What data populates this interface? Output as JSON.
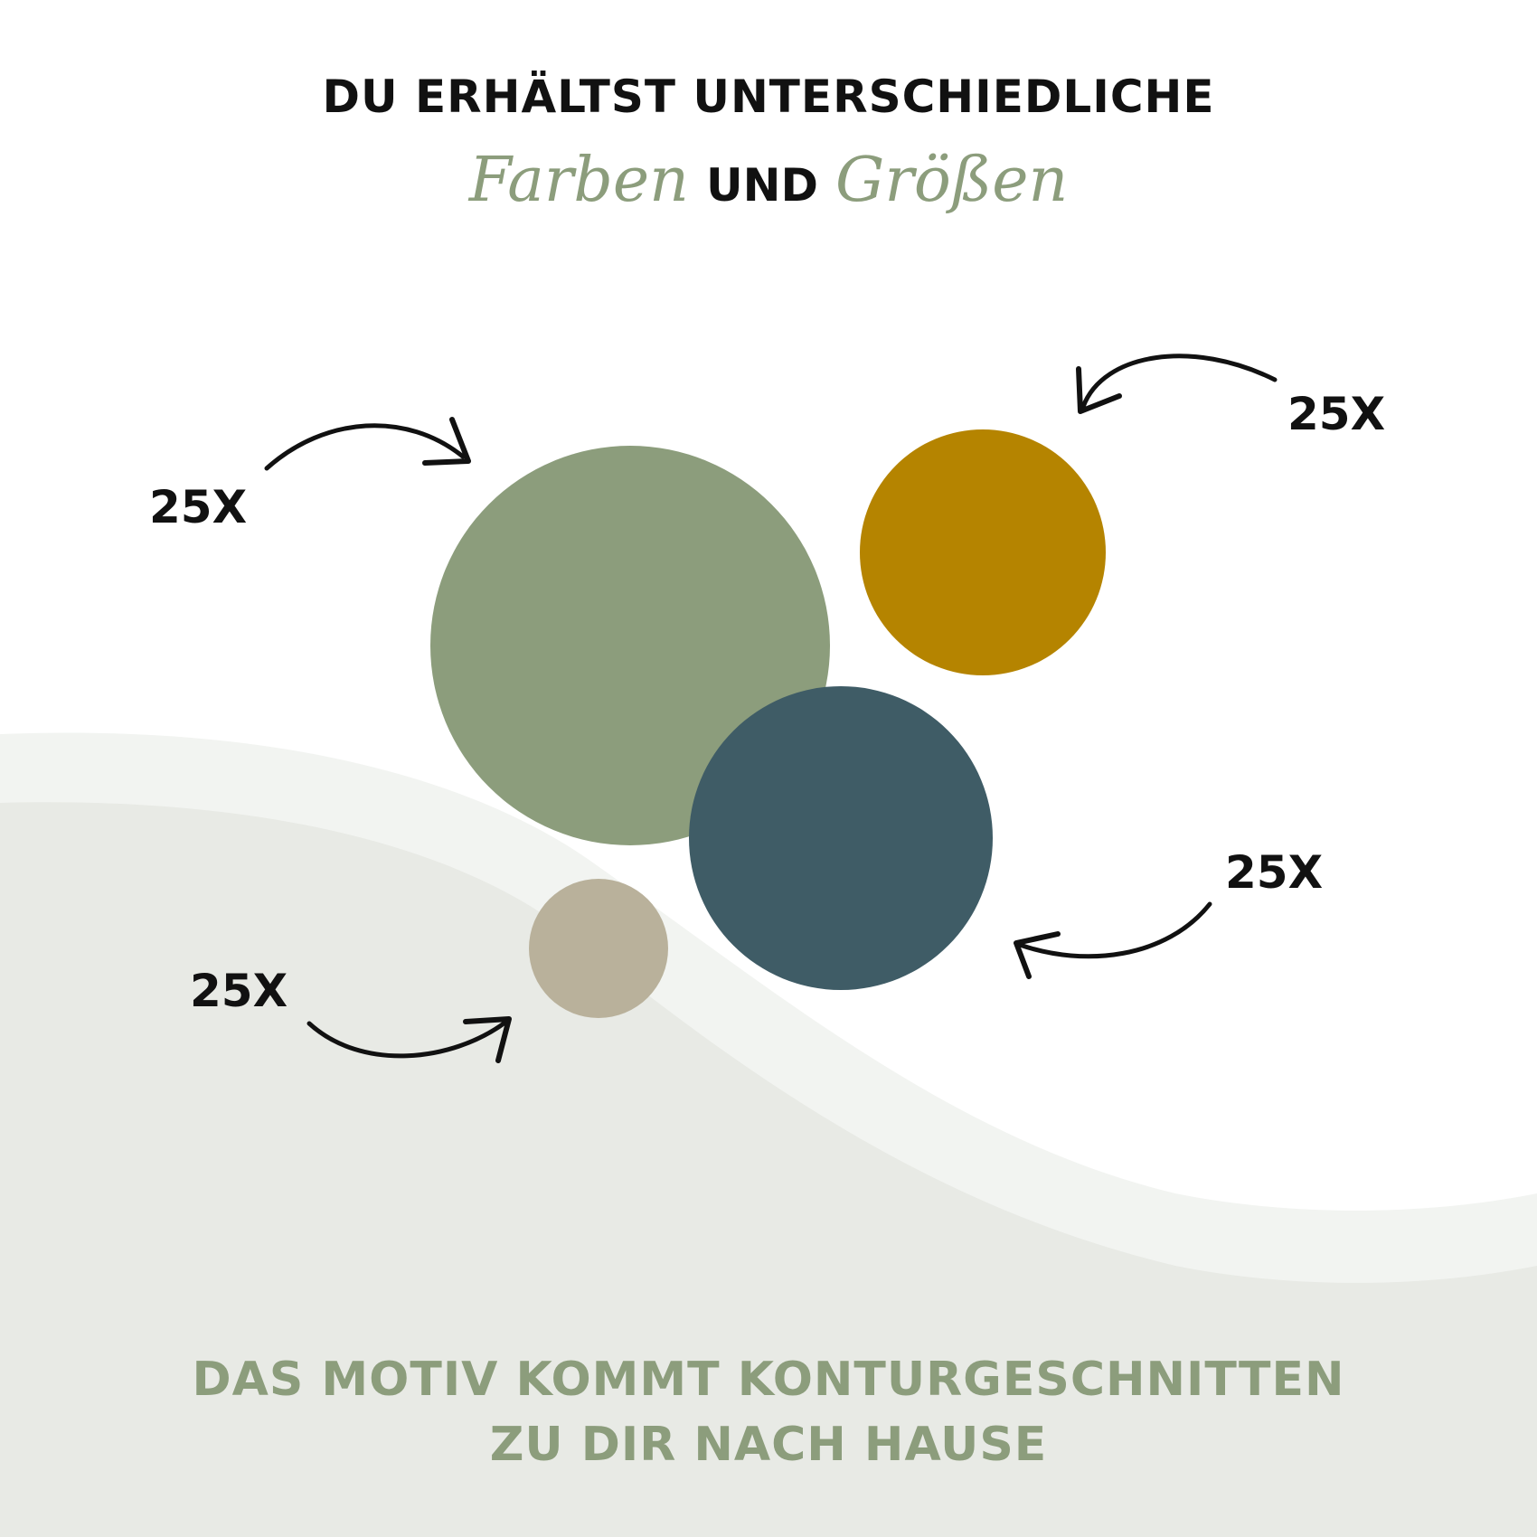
{
  "heading": {
    "line1": "DU ERHÄLTST UNTERSCHIEDLICHE",
    "word_farben": "Farben",
    "word_und": "UND",
    "word_groessen": "Größen"
  },
  "labels": {
    "green": "25X",
    "mustard": "25X",
    "teal": "25X",
    "beige": "25X"
  },
  "footer": {
    "line1": "DAS MOTIV KOMMT KONTURGESCHNITTEN",
    "line2": "ZU DIR NACH HAUSE"
  },
  "colors": {
    "text_dark": "#111111",
    "accent_sage": "#8c9d7c",
    "circle_green": "#8c9d7c",
    "circle_mustard": "#b58400",
    "circle_teal": "#3f5c66",
    "circle_beige": "#b9b19b",
    "wave_light": "#f2f4f1",
    "wave_dark": "#e8eae5",
    "background": "#ffffff"
  },
  "icons": {
    "arrow": "curved-arrow-icon"
  }
}
